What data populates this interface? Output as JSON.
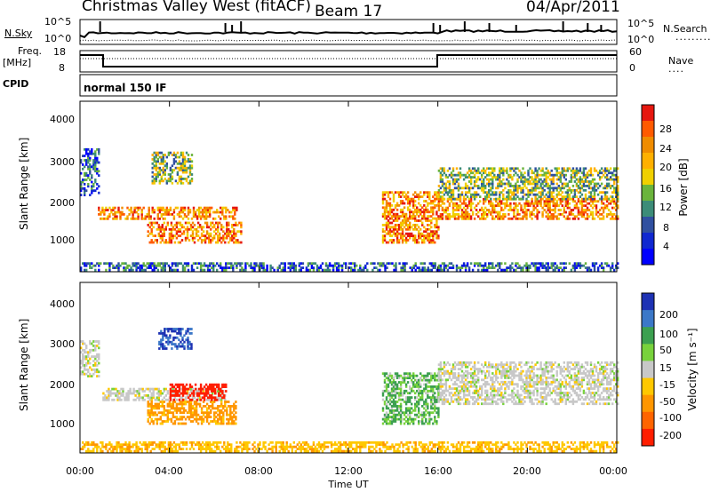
{
  "header": {
    "title": "Christmas Valley West (fitACF)",
    "beam": "Beam 17",
    "date": "04/Apr/2011"
  },
  "panels": {
    "noise_left_label": "N.Sky",
    "noise_left_ticks": [
      "10^5",
      "10^0"
    ],
    "noise_right_ticks": [
      "10^5",
      "10^0"
    ],
    "noise_right_label": "N.Search",
    "freq_label_1": "Freq.",
    "freq_label_2": "[MHz]",
    "freq_ticks": [
      "18",
      "8"
    ],
    "nave_ticks": [
      "60",
      "0"
    ],
    "nave_label": "Nave",
    "cpid_label": "CPID",
    "program": "normal 150 IF"
  },
  "axes": {
    "ylabel": "Slant Range [km]",
    "xlabel": "Time UT",
    "y_ticks": [
      "4000",
      "3000",
      "2000",
      "1000"
    ],
    "x_ticks": [
      "00:00",
      "04:00",
      "08:00",
      "12:00",
      "16:00",
      "20:00",
      "00:00"
    ]
  },
  "colorbars": {
    "power": {
      "label": "Power [dB]",
      "ticks": [
        "28",
        "24",
        "20",
        "16",
        "12",
        "8",
        "4"
      ],
      "colors": [
        "#e6170f",
        "#ff5a00",
        "#f08c00",
        "#ffb000",
        "#f0d000",
        "#6ab43c",
        "#3c8c78",
        "#3050a0",
        "#1028d0",
        "#0000ff"
      ]
    },
    "velocity": {
      "label": "Velocity [m s⁻¹]",
      "ticks": [
        "200",
        "100",
        "50",
        "15",
        "-15",
        "-50",
        "-100",
        "-200"
      ],
      "colors": [
        "#1e32b4",
        "#3c78c8",
        "#3ca050",
        "#78d23c",
        "#c8c8c8",
        "#ffc800",
        "#ff9600",
        "#ff6400",
        "#ff1e00"
      ]
    }
  },
  "chart_data": [
    {
      "type": "heatmap",
      "name": "power",
      "x_range_hours": [
        0,
        24
      ],
      "y_range_km": [
        180,
        4500
      ],
      "features": [
        {
          "t": [
            0.0,
            0.8
          ],
          "r": [
            2100,
            3300
          ],
          "level": "low"
        },
        {
          "t": [
            0.8,
            7.0
          ],
          "r": [
            1500,
            1800
          ],
          "level": "high"
        },
        {
          "t": [
            3.0,
            7.2
          ],
          "r": [
            900,
            1400
          ],
          "level": "high"
        },
        {
          "t": [
            3.2,
            5.0
          ],
          "r": [
            2400,
            3200
          ],
          "level": "mid"
        },
        {
          "t": [
            13.5,
            16.0
          ],
          "r": [
            900,
            2200
          ],
          "level": "high"
        },
        {
          "t": [
            16.0,
            24.0
          ],
          "r": [
            1500,
            2000
          ],
          "level": "high"
        },
        {
          "t": [
            16.0,
            24.0
          ],
          "r": [
            2000,
            2800
          ],
          "level": "mid"
        },
        {
          "t": [
            0.0,
            24.0
          ],
          "r": [
            200,
            400
          ],
          "level": "low"
        }
      ]
    },
    {
      "type": "heatmap",
      "name": "velocity",
      "x_range_hours": [
        0,
        24
      ],
      "y_range_km": [
        180,
        4500
      ],
      "features": [
        {
          "t": [
            0.0,
            0.8
          ],
          "r": [
            2100,
            3000
          ],
          "v": 0
        },
        {
          "t": [
            1.0,
            6.5
          ],
          "r": [
            1500,
            1800
          ],
          "v": 0
        },
        {
          "t": [
            3.0,
            7.0
          ],
          "r": [
            900,
            1500
          ],
          "v": -60
        },
        {
          "t": [
            4.0,
            6.5
          ],
          "r": [
            1500,
            1900
          ],
          "v": -200
        },
        {
          "t": [
            3.5,
            5.0
          ],
          "r": [
            2800,
            3300
          ],
          "v": 150
        },
        {
          "t": [
            13.5,
            16.0
          ],
          "r": [
            900,
            2200
          ],
          "v": 30
        },
        {
          "t": [
            16.0,
            24.0
          ],
          "r": [
            1400,
            2500
          ],
          "v": 0
        },
        {
          "t": [
            0.0,
            24.0
          ],
          "r": [
            200,
            450
          ],
          "v": -40
        }
      ]
    }
  ]
}
